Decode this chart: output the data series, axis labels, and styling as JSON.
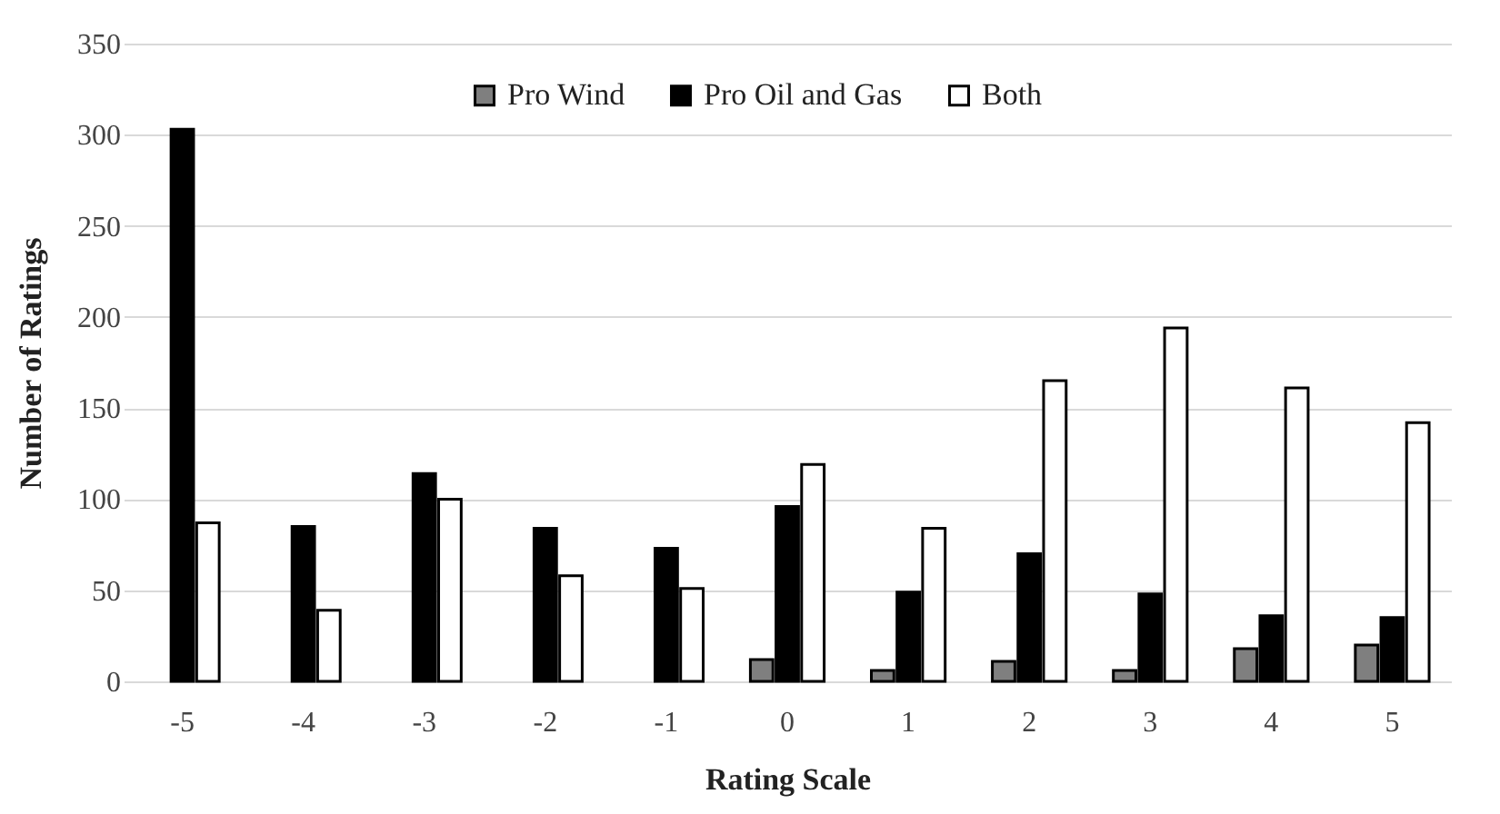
{
  "chart_data": {
    "type": "bar",
    "xlabel": "Rating Scale",
    "ylabel": "Number of Ratings",
    "categories": [
      "-5",
      "-4",
      "-3",
      "-2",
      "-1",
      "0",
      "1",
      "2",
      "3",
      "4",
      "5"
    ],
    "series": [
      {
        "name": "Pro Wind",
        "color": "#7f7f7f",
        "values": [
          null,
          null,
          null,
          null,
          null,
          12,
          6,
          11,
          6,
          18,
          20
        ]
      },
      {
        "name": "Pro Oil and Gas",
        "color": "#000000",
        "values": [
          303,
          85,
          114,
          84,
          73,
          96,
          49,
          70,
          48,
          36,
          35
        ]
      },
      {
        "name": "Both",
        "color": "#ffffff",
        "values": [
          87,
          39,
          100,
          58,
          51,
          119,
          84,
          165,
          194,
          161,
          142
        ]
      }
    ],
    "ylim": [
      0,
      350
    ],
    "yticks": [
      0,
      50,
      100,
      150,
      200,
      250,
      300,
      350
    ],
    "grid": "y",
    "legend": "top"
  }
}
